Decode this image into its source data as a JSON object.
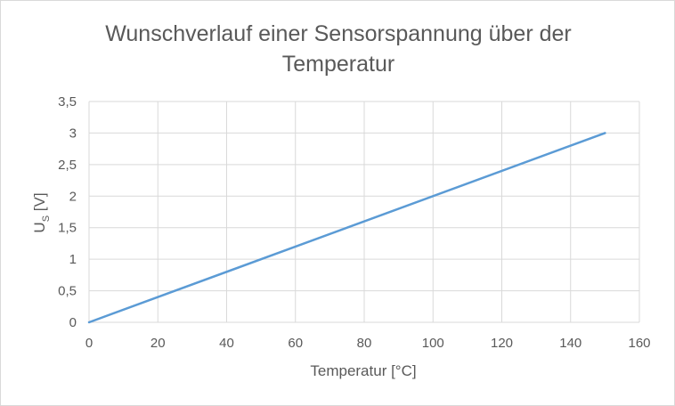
{
  "chart_data": {
    "type": "line",
    "title_lines": [
      "Wunschverlauf einer Sensorspannung über der",
      "Temperatur"
    ],
    "xlabel": "Temperatur [°C]",
    "ylabel_main": "U",
    "ylabel_sub": "S",
    "ylabel_unit": "[V]",
    "xlim": [
      0,
      160
    ],
    "ylim": [
      0,
      3.5
    ],
    "x_ticks": [
      "0",
      "20",
      "40",
      "60",
      "80",
      "100",
      "120",
      "140",
      "160"
    ],
    "y_ticks": [
      "0",
      "0,5",
      "1",
      "1,5",
      "2",
      "2,5",
      "3",
      "3,5"
    ],
    "grid": true,
    "legend": "none",
    "series": [
      {
        "color": "#5b9bd5",
        "x": [
          0,
          150
        ],
        "y": [
          0,
          3
        ]
      }
    ]
  }
}
